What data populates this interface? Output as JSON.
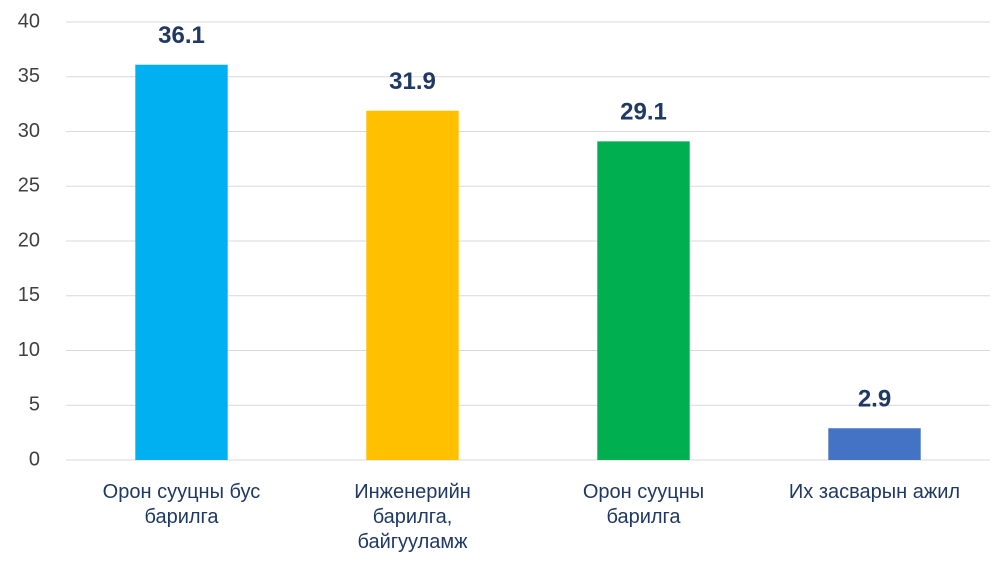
{
  "chart_data": {
    "type": "bar",
    "categories": [
      "Орон сууцны бус\nбарилга",
      "Инженерийн\nбарилга,\nбайгууламж",
      "Орон сууцны\nбарилга",
      "Их засварын ажил"
    ],
    "values": [
      36.1,
      31.9,
      29.1,
      2.9
    ],
    "colors": [
      "#00b0f0",
      "#ffc000",
      "#00b050",
      "#4472c4"
    ],
    "ylim": [
      0,
      40
    ],
    "yticks": [
      0,
      5,
      10,
      15,
      20,
      25,
      30,
      35,
      40
    ],
    "grid": true
  }
}
